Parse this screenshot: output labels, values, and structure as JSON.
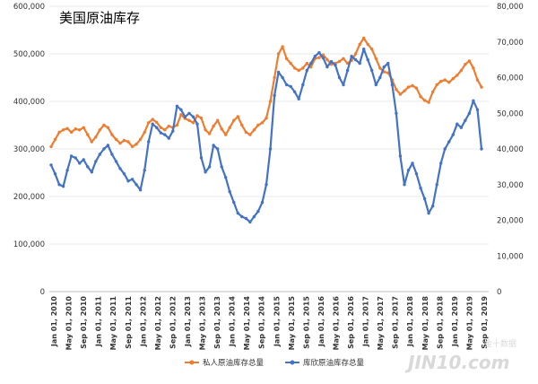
{
  "chart_data": {
    "type": "line",
    "title": "美国原油库存",
    "y_left": {
      "min": 0,
      "max": 600000,
      "ticks": [
        "0",
        "100,000",
        "200,000",
        "300,000",
        "400,000",
        "500,000",
        "600,000"
      ]
    },
    "y_right": {
      "min": 0,
      "max": 80000,
      "ticks": [
        "0",
        "10,000",
        "20,000",
        "30,000",
        "40,000",
        "50,000",
        "60,000",
        "70,000",
        "80,000"
      ]
    },
    "x_ticks": [
      "Jan 01, 2010",
      "May 01, 2010",
      "Sep 01, 2010",
      "Jan 01, 2011",
      "May 01, 2011",
      "Sep 01, 2011",
      "Jan 01, 2012",
      "May 01, 2012",
      "Sep 01, 2012",
      "Jan 01, 2013",
      "May 01, 2013",
      "Sep 01, 2013",
      "Jan 01, 2014",
      "May 01, 2014",
      "Sep 01, 2014",
      "Jan 01, 2015",
      "May 01, 2015",
      "Sep 01, 2015",
      "Jan 01, 2016",
      "May 01, 2016",
      "Sep 01, 2016",
      "Jan 01, 2017",
      "May 01, 2017",
      "Sep 01, 2017",
      "Jan 01, 2018",
      "May 01, 2018",
      "Sep 01, 2018",
      "Jan 01, 2019",
      "May 01, 2019",
      "Sep 01, 2019"
    ],
    "series": [
      {
        "name": "私人原油库存总量",
        "axis": "left",
        "color": "#ed7d31",
        "values": [
          305000,
          320000,
          335000,
          340000,
          343000,
          335000,
          342000,
          340000,
          345000,
          330000,
          315000,
          325000,
          340000,
          350000,
          345000,
          330000,
          320000,
          312000,
          318000,
          315000,
          305000,
          310000,
          320000,
          335000,
          355000,
          362000,
          356000,
          345000,
          340000,
          348000,
          345000,
          350000,
          372000,
          364000,
          360000,
          355000,
          370000,
          365000,
          340000,
          332000,
          348000,
          360000,
          342000,
          330000,
          345000,
          360000,
          368000,
          350000,
          335000,
          330000,
          340000,
          350000,
          355000,
          365000,
          400000,
          450000,
          500000,
          515000,
          490000,
          480000,
          470000,
          465000,
          470000,
          480000,
          472000,
          490000,
          492000,
          498000,
          488000,
          478000,
          480000,
          484000,
          490000,
          480000,
          486000,
          500000,
          520000,
          533000,
          520000,
          510000,
          490000,
          470000,
          462000,
          460000,
          445000,
          425000,
          415000,
          422000,
          430000,
          433000,
          428000,
          410000,
          402000,
          398000,
          420000,
          435000,
          442000,
          445000,
          440000,
          448000,
          455000,
          465000,
          478000,
          485000,
          470000,
          445000,
          430000
        ]
      },
      {
        "name": "库欣原油库存总量",
        "axis": "right",
        "color": "#4472c4",
        "values": [
          35500,
          33000,
          30000,
          29500,
          34000,
          38000,
          37500,
          36000,
          37000,
          35000,
          33500,
          36500,
          38500,
          40000,
          41000,
          38500,
          36500,
          34500,
          33000,
          31000,
          31500,
          30000,
          28500,
          34000,
          42000,
          47000,
          46000,
          44500,
          44000,
          43000,
          45000,
          52000,
          51000,
          49000,
          50000,
          49000,
          47000,
          37500,
          33500,
          35000,
          41000,
          40000,
          35000,
          32000,
          28000,
          25000,
          22000,
          21000,
          20500,
          19500,
          21000,
          22500,
          25000,
          30000,
          40000,
          55000,
          61500,
          60000,
          58000,
          57500,
          56000,
          54000,
          58000,
          62000,
          64000,
          66000,
          67000,
          65500,
          63000,
          64500,
          63500,
          60000,
          58000,
          62000,
          66000,
          65000,
          64000,
          68000,
          65000,
          62000,
          58000,
          60000,
          63000,
          64000,
          58000,
          50000,
          38000,
          30000,
          34000,
          36000,
          33000,
          29000,
          26000,
          22000,
          24000,
          30000,
          36000,
          40000,
          42000,
          44000,
          47000,
          46000,
          48000,
          50000,
          53500,
          51000,
          40000
        ]
      }
    ],
    "legend": "bottom"
  },
  "watermark": {
    "brand": "JIN10.com",
    "tag": "金十数据"
  }
}
